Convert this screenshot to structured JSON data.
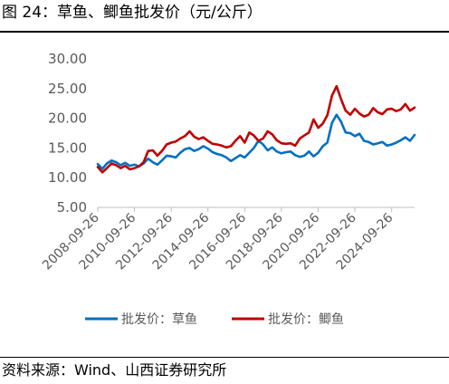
{
  "title": "图 24：草鱼、鲫鱼批发价（元/公斤）",
  "source": "资料来源：Wind、山西证券研究所",
  "colors": {
    "grass_carp": "#0070c0",
    "crucian_carp": "#c00000",
    "axis": "#595959"
  },
  "chart_data": {
    "type": "line",
    "title": "",
    "xlabel": "",
    "ylabel": "",
    "ylim": [
      5,
      30
    ],
    "yticks": [
      "5.00",
      "10.00",
      "15.00",
      "20.00",
      "25.00",
      "30.00"
    ],
    "xlim": [
      "2008-09-26",
      "2025-12-26"
    ],
    "xticks": [
      "2008-09-26",
      "2010-09-26",
      "2012-09-26",
      "2014-09-26",
      "2016-09-26",
      "2018-09-26",
      "2020-09-26",
      "2022-09-26",
      "2024-09-26"
    ],
    "grid": false,
    "legend": "bottom",
    "series": [
      {
        "name": "批发价：草鱼",
        "color": "#0070c0",
        "points": [
          [
            "2008-09-26",
            12.3
          ],
          [
            "2008-12-26",
            11.5
          ],
          [
            "2009-03-26",
            12.4
          ],
          [
            "2009-06-26",
            12.9
          ],
          [
            "2009-09-26",
            12.6
          ],
          [
            "2009-12-26",
            12.1
          ],
          [
            "2010-03-26",
            12.5
          ],
          [
            "2010-06-26",
            12.0
          ],
          [
            "2010-09-26",
            12.2
          ],
          [
            "2010-12-26",
            11.9
          ],
          [
            "2011-03-26",
            12.4
          ],
          [
            "2011-06-26",
            13.2
          ],
          [
            "2011-09-26",
            12.6
          ],
          [
            "2011-12-26",
            12.2
          ],
          [
            "2012-03-26",
            12.9
          ],
          [
            "2012-06-26",
            13.7
          ],
          [
            "2012-09-26",
            13.6
          ],
          [
            "2012-12-26",
            13.4
          ],
          [
            "2013-03-26",
            14.2
          ],
          [
            "2013-06-26",
            14.8
          ],
          [
            "2013-09-26",
            15.0
          ],
          [
            "2013-12-26",
            14.5
          ],
          [
            "2014-03-26",
            14.8
          ],
          [
            "2014-06-26",
            15.3
          ],
          [
            "2014-09-26",
            14.9
          ],
          [
            "2014-12-26",
            14.3
          ],
          [
            "2015-03-26",
            14.0
          ],
          [
            "2015-06-26",
            13.8
          ],
          [
            "2015-09-26",
            13.4
          ],
          [
            "2015-12-26",
            12.8
          ],
          [
            "2016-03-26",
            13.3
          ],
          [
            "2016-06-26",
            13.8
          ],
          [
            "2016-09-26",
            13.4
          ],
          [
            "2016-12-26",
            14.2
          ],
          [
            "2017-03-26",
            15.0
          ],
          [
            "2017-06-26",
            16.2
          ],
          [
            "2017-09-26",
            15.6
          ],
          [
            "2017-12-26",
            14.6
          ],
          [
            "2018-03-26",
            15.1
          ],
          [
            "2018-06-26",
            14.4
          ],
          [
            "2018-09-26",
            14.1
          ],
          [
            "2018-12-26",
            14.3
          ],
          [
            "2019-03-26",
            14.4
          ],
          [
            "2019-06-26",
            13.8
          ],
          [
            "2019-09-26",
            13.5
          ],
          [
            "2019-12-26",
            13.7
          ],
          [
            "2020-03-26",
            14.4
          ],
          [
            "2020-06-26",
            13.6
          ],
          [
            "2020-09-26",
            14.2
          ],
          [
            "2020-12-26",
            15.3
          ],
          [
            "2021-03-26",
            15.9
          ],
          [
            "2021-06-26",
            19.2
          ],
          [
            "2021-09-26",
            20.6
          ],
          [
            "2021-12-26",
            19.4
          ],
          [
            "2022-03-26",
            17.6
          ],
          [
            "2022-06-26",
            17.5
          ],
          [
            "2022-09-26",
            17.0
          ],
          [
            "2022-12-26",
            17.4
          ],
          [
            "2023-03-26",
            16.2
          ],
          [
            "2023-06-26",
            16.0
          ],
          [
            "2023-09-26",
            15.6
          ],
          [
            "2023-12-26",
            15.8
          ],
          [
            "2024-03-26",
            16.0
          ],
          [
            "2024-06-26",
            15.4
          ],
          [
            "2024-09-26",
            15.6
          ],
          [
            "2024-12-26",
            15.9
          ],
          [
            "2025-03-26",
            16.3
          ],
          [
            "2025-06-26",
            16.8
          ],
          [
            "2025-09-26",
            16.2
          ],
          [
            "2025-12-26",
            17.2
          ]
        ]
      },
      {
        "name": "批发价：鲫鱼",
        "color": "#c00000",
        "points": [
          [
            "2008-09-26",
            11.8
          ],
          [
            "2008-12-26",
            10.9
          ],
          [
            "2009-03-26",
            11.6
          ],
          [
            "2009-06-26",
            12.4
          ],
          [
            "2009-09-26",
            12.1
          ],
          [
            "2009-12-26",
            11.6
          ],
          [
            "2010-03-26",
            12.0
          ],
          [
            "2010-06-26",
            11.4
          ],
          [
            "2010-09-26",
            11.6
          ],
          [
            "2010-12-26",
            11.9
          ],
          [
            "2011-03-26",
            12.6
          ],
          [
            "2011-06-26",
            14.5
          ],
          [
            "2011-09-26",
            14.6
          ],
          [
            "2011-12-26",
            13.7
          ],
          [
            "2012-03-26",
            14.5
          ],
          [
            "2012-06-26",
            15.6
          ],
          [
            "2012-09-26",
            15.9
          ],
          [
            "2012-12-26",
            16.1
          ],
          [
            "2013-03-26",
            16.6
          ],
          [
            "2013-06-26",
            17.0
          ],
          [
            "2013-09-26",
            17.8
          ],
          [
            "2013-12-26",
            16.9
          ],
          [
            "2014-03-26",
            16.5
          ],
          [
            "2014-06-26",
            16.8
          ],
          [
            "2014-09-26",
            16.2
          ],
          [
            "2014-12-26",
            15.7
          ],
          [
            "2015-03-26",
            15.6
          ],
          [
            "2015-06-26",
            15.4
          ],
          [
            "2015-09-26",
            15.1
          ],
          [
            "2015-12-26",
            15.3
          ],
          [
            "2016-03-26",
            16.2
          ],
          [
            "2016-06-26",
            17.0
          ],
          [
            "2016-09-26",
            15.9
          ],
          [
            "2016-12-26",
            17.6
          ],
          [
            "2017-03-26",
            17.1
          ],
          [
            "2017-06-26",
            16.2
          ],
          [
            "2017-09-26",
            16.6
          ],
          [
            "2017-12-26",
            17.8
          ],
          [
            "2018-03-26",
            17.3
          ],
          [
            "2018-06-26",
            16.3
          ],
          [
            "2018-09-26",
            15.8
          ],
          [
            "2018-12-26",
            15.7
          ],
          [
            "2019-03-26",
            15.8
          ],
          [
            "2019-06-26",
            15.4
          ],
          [
            "2019-09-26",
            16.6
          ],
          [
            "2019-12-26",
            17.1
          ],
          [
            "2020-03-26",
            17.6
          ],
          [
            "2020-06-26",
            19.8
          ],
          [
            "2020-09-26",
            18.4
          ],
          [
            "2020-12-26",
            19.1
          ],
          [
            "2021-03-26",
            20.5
          ],
          [
            "2021-06-26",
            23.8
          ],
          [
            "2021-09-26",
            25.4
          ],
          [
            "2021-12-26",
            23.2
          ],
          [
            "2022-03-26",
            21.3
          ],
          [
            "2022-06-26",
            20.6
          ],
          [
            "2022-09-26",
            21.6
          ],
          [
            "2022-12-26",
            20.8
          ],
          [
            "2023-03-26",
            20.3
          ],
          [
            "2023-06-26",
            20.6
          ],
          [
            "2023-09-26",
            21.7
          ],
          [
            "2023-12-26",
            21.0
          ],
          [
            "2024-03-26",
            20.7
          ],
          [
            "2024-06-26",
            21.5
          ],
          [
            "2024-09-26",
            21.6
          ],
          [
            "2024-12-26",
            21.2
          ],
          [
            "2025-03-26",
            21.5
          ],
          [
            "2025-06-26",
            22.4
          ],
          [
            "2025-09-26",
            21.3
          ],
          [
            "2025-12-26",
            21.8
          ]
        ]
      }
    ]
  }
}
